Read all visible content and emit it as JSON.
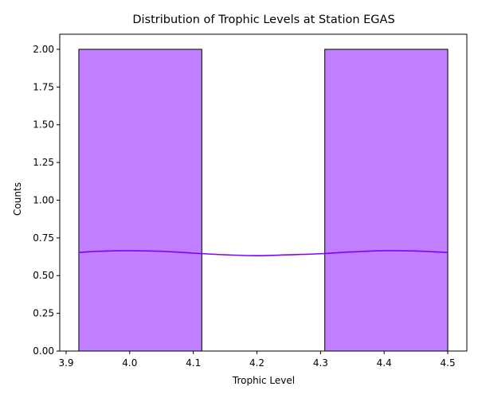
{
  "chart_data": {
    "type": "bar",
    "title": "Distribution of Trophic Levels at Station EGAS",
    "xlabel": "Trophic Level",
    "ylabel": "Counts",
    "xlim": [
      3.89,
      4.53
    ],
    "ylim": [
      0,
      2.1
    ],
    "bins": [
      {
        "start": 3.92,
        "end": 4.113333,
        "count": 2
      },
      {
        "start": 4.113333,
        "end": 4.306667,
        "count": 0
      },
      {
        "start": 4.306667,
        "end": 4.5,
        "count": 2
      }
    ],
    "x_ticks": [
      "3.9",
      "4.0",
      "4.1",
      "4.2",
      "4.3",
      "4.4",
      "4.5"
    ],
    "y_ticks": [
      "0.00",
      "0.25",
      "0.50",
      "0.75",
      "1.00",
      "1.25",
      "1.50",
      "1.75",
      "2.00"
    ],
    "kde": {
      "x": [
        3.92,
        3.95,
        4.0,
        4.05,
        4.1,
        4.15,
        4.2,
        4.25,
        4.3,
        4.35,
        4.4,
        4.45,
        4.5
      ],
      "y": [
        0.653,
        0.661,
        0.665,
        0.661,
        0.649,
        0.638,
        0.632,
        0.638,
        0.645,
        0.657,
        0.665,
        0.663,
        0.653
      ]
    },
    "grid": false,
    "legend": "none",
    "colors": {
      "bar_fill": "#bf7fff",
      "bar_edge": "#000000",
      "kde_line": "#8000ff"
    }
  }
}
